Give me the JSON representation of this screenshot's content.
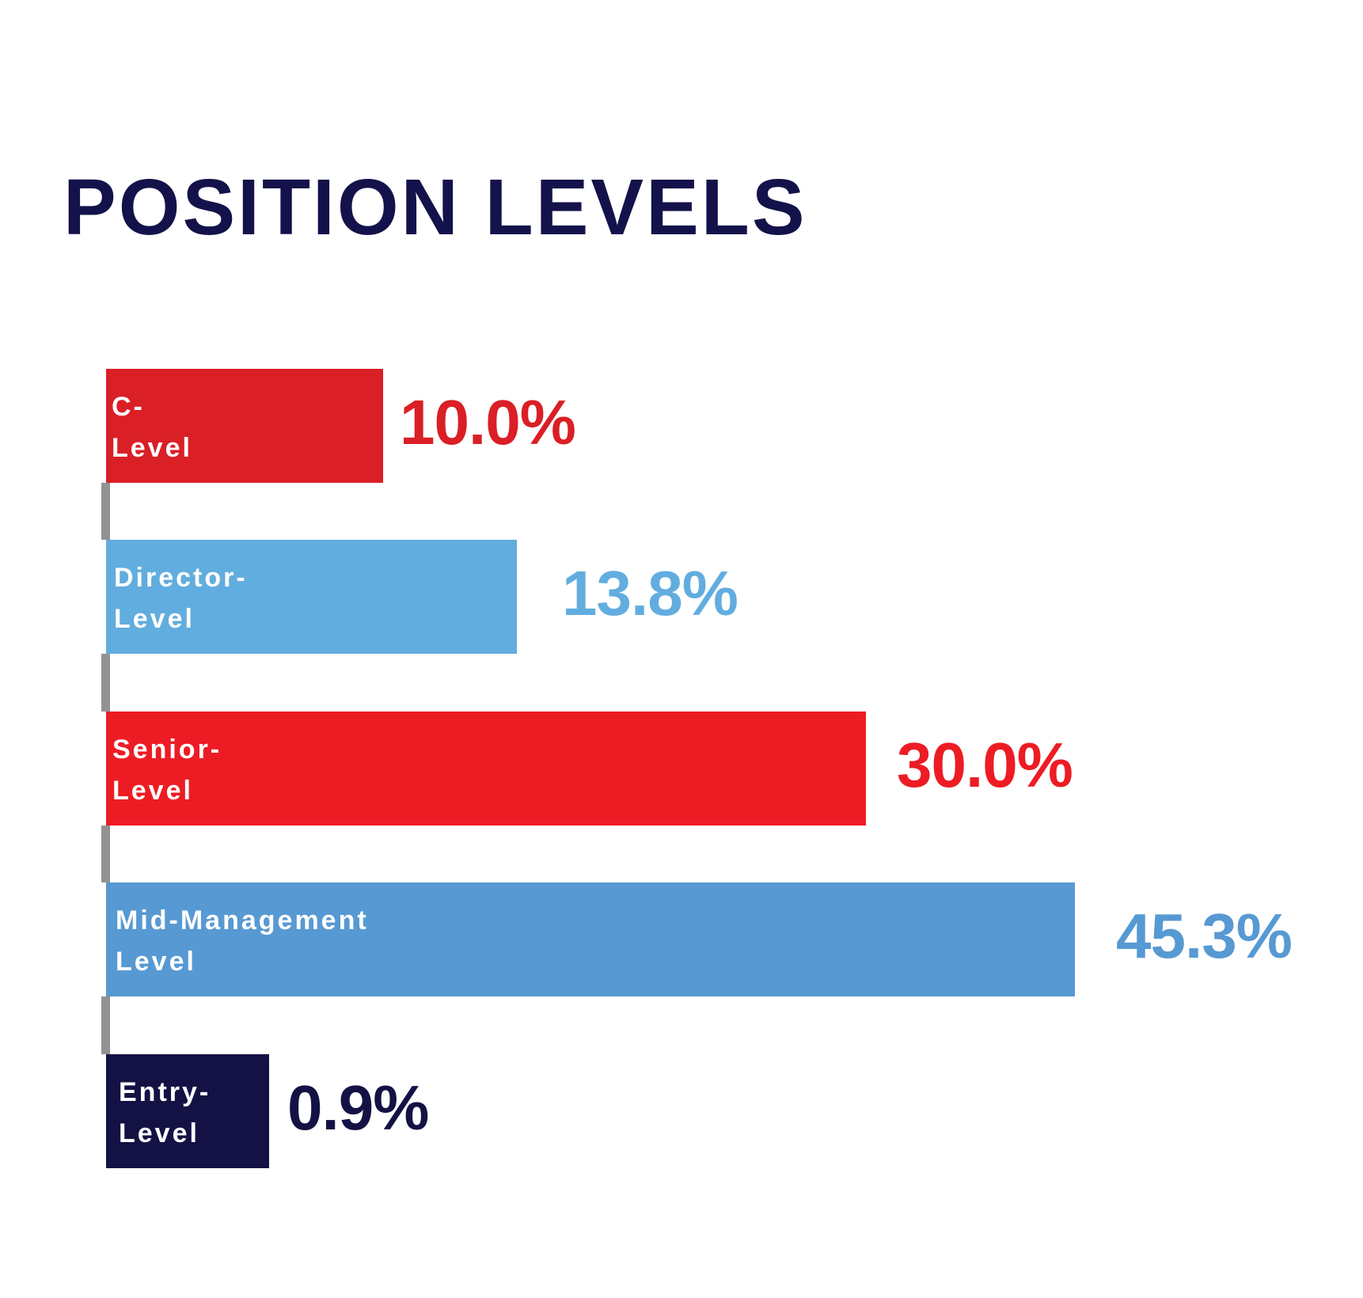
{
  "chart_data": {
    "type": "bar",
    "orientation": "horizontal",
    "title": "POSITION LEVELS",
    "categories": [
      "C-Level",
      "Director-Level",
      "Senior-Level",
      "Mid-Management Level",
      "Entry-Level"
    ],
    "label_lines": [
      [
        "C-",
        "Level"
      ],
      [
        "Director-",
        "Level"
      ],
      [
        "Senior-",
        "Level"
      ],
      [
        "Mid-Management",
        "Level"
      ],
      [
        "Entry-",
        "Level"
      ]
    ],
    "values": [
      10.0,
      13.8,
      30.0,
      45.3,
      0.9
    ],
    "value_labels": [
      "10.0%",
      "13.8%",
      "30.0%",
      "45.3%",
      "0.9%"
    ],
    "colors": [
      "#da1f26",
      "#62addf",
      "#ed1c24",
      "#5799d3",
      "#141244"
    ],
    "xlabel": "",
    "ylabel": "",
    "grid": false,
    "legend": "none"
  }
}
